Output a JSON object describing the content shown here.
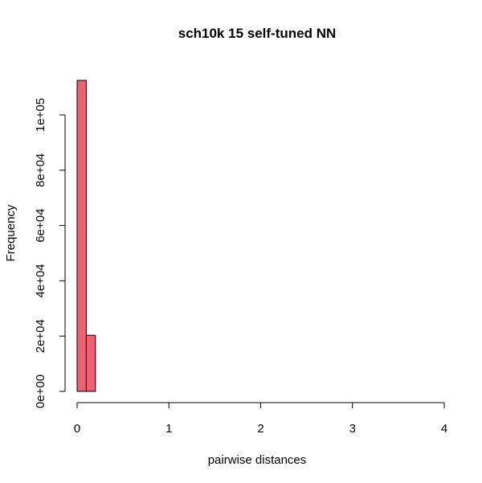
{
  "chart_data": {
    "type": "bar",
    "title": "sch10k 15 self-tuned NN",
    "xlabel": "pairwise distances",
    "ylabel": "Frequency",
    "xlim": [
      0,
      4
    ],
    "ylim": [
      0,
      100000
    ],
    "x_ticks": [
      0,
      1,
      2,
      3,
      4
    ],
    "x_tick_labels": [
      "0",
      "1",
      "2",
      "3",
      "4"
    ],
    "y_ticks": [
      0,
      20000,
      40000,
      60000,
      80000,
      100000
    ],
    "y_tick_labels": [
      "0e+00",
      "2e+04",
      "4e+04",
      "6e+04",
      "8e+04",
      "1e+05"
    ],
    "bin_width": 0.1,
    "bin_starts": [
      0.0,
      0.1,
      0.2,
      0.3,
      0.4,
      0.5,
      0.6,
      0.7,
      0.8,
      0.9,
      1.0,
      1.1,
      1.2,
      1.3,
      1.4,
      1.5,
      1.6,
      1.7,
      1.8,
      1.9,
      2.0,
      2.1,
      2.2,
      2.3,
      2.4,
      2.5,
      2.6,
      2.7,
      2.8,
      2.9,
      3.0,
      3.1,
      3.2,
      3.3,
      3.4,
      3.5,
      3.6,
      3.7,
      3.8
    ],
    "values": [
      112500,
      20300,
      0,
      0,
      0,
      0,
      0,
      0,
      0,
      0,
      0,
      0,
      0,
      0,
      0,
      0,
      0,
      0,
      0,
      0,
      0,
      0,
      0,
      0,
      0,
      0,
      0,
      0,
      0,
      0,
      0,
      0,
      0,
      0,
      0,
      0,
      0,
      0,
      0
    ],
    "bar_fill": "#f06072",
    "bar_stroke": "#000000",
    "grid": false
  }
}
